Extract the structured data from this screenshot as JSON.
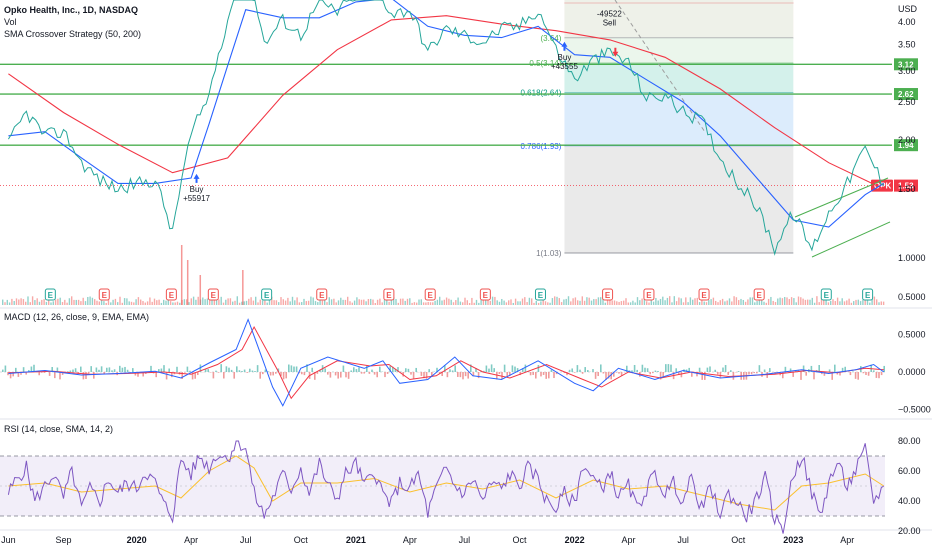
{
  "chart_data": {
    "type": "line",
    "title": "Opko Health, Inc., 1D, NASDAQ",
    "legend": [
      "Vol",
      "SMA Crossover Strategy (50, 200)"
    ],
    "currency_label": "USD",
    "x_ticks": [
      "Jun",
      "Sep",
      "2020",
      "Apr",
      "Jul",
      "Oct",
      "2021",
      "Apr",
      "Jul",
      "Oct",
      "2022",
      "Apr",
      "Jul",
      "Oct",
      "2023",
      "Apr"
    ],
    "price_axis": {
      "scale": "log",
      "ticks": [
        "4.00",
        "3.50",
        "3.00",
        "2.50",
        "2.00",
        "1.50",
        "1.0000",
        "0.5000"
      ]
    },
    "price_series": [
      [
        "2019-06-01",
        1.95
      ],
      [
        "2019-07-01",
        2.35
      ],
      [
        "2019-08-01",
        2.05
      ],
      [
        "2019-09-01",
        2.1
      ],
      [
        "2019-10-01",
        1.75
      ],
      [
        "2019-11-01",
        1.58
      ],
      [
        "2019-12-01",
        1.5
      ],
      [
        "2020-01-01",
        1.55
      ],
      [
        "2020-02-01",
        1.58
      ],
      [
        "2020-03-01",
        1.15
      ],
      [
        "2020-04-01",
        2.05
      ],
      [
        "2020-05-01",
        2.6
      ],
      [
        "2020-06-01",
        4.05
      ],
      [
        "2020-07-01",
        5.8
      ],
      [
        "2020-08-01",
        3.5
      ],
      [
        "2020-09-01",
        4.05
      ],
      [
        "2020-10-01",
        3.7
      ],
      [
        "2020-11-01",
        4.5
      ],
      [
        "2020-12-01",
        4.25
      ],
      [
        "2021-01-01",
        4.75
      ],
      [
        "2021-02-01",
        5.0
      ],
      [
        "2021-03-01",
        4.2
      ],
      [
        "2021-04-01",
        4.3
      ],
      [
        "2021-05-01",
        3.35
      ],
      [
        "2021-06-01",
        3.85
      ],
      [
        "2021-07-01",
        3.7
      ],
      [
        "2021-08-01",
        3.55
      ],
      [
        "2021-09-01",
        3.85
      ],
      [
        "2021-10-01",
        3.9
      ],
      [
        "2021-11-01",
        4.3
      ],
      [
        "2021-12-01",
        3.4
      ],
      [
        "2022-01-01",
        2.85
      ],
      [
        "2022-02-01",
        3.2
      ],
      [
        "2022-03-01",
        3.35
      ],
      [
        "2022-04-01",
        3.15
      ],
      [
        "2022-05-01",
        2.55
      ],
      [
        "2022-06-01",
        2.6
      ],
      [
        "2022-07-01",
        2.35
      ],
      [
        "2022-08-01",
        2.25
      ],
      [
        "2022-09-01",
        1.8
      ],
      [
        "2022-10-01",
        1.55
      ],
      [
        "2022-11-01",
        1.35
      ],
      [
        "2022-12-01",
        1.06
      ],
      [
        "2023-01-01",
        1.3
      ],
      [
        "2023-02-01",
        1.05
      ],
      [
        "2023-03-01",
        1.3
      ],
      [
        "2023-04-01",
        1.55
      ],
      [
        "2023-05-01",
        1.9
      ],
      [
        "2023-06-01",
        1.53
      ]
    ],
    "sma_50": [
      [
        "2019-06-01",
        2.05
      ],
      [
        "2019-08-01",
        2.1
      ],
      [
        "2019-10-01",
        1.8
      ],
      [
        "2019-12-01",
        1.55
      ],
      [
        "2020-02-01",
        1.55
      ],
      [
        "2020-04-01",
        1.6
      ],
      [
        "2020-05-01",
        2.2
      ],
      [
        "2020-06-01",
        3.1
      ],
      [
        "2020-07-01",
        4.3
      ],
      [
        "2020-09-01",
        4.1
      ],
      [
        "2020-11-01",
        4.1
      ],
      [
        "2021-01-01",
        4.5
      ],
      [
        "2021-03-01",
        4.6
      ],
      [
        "2021-05-01",
        3.9
      ],
      [
        "2021-07-01",
        3.7
      ],
      [
        "2021-09-01",
        3.65
      ],
      [
        "2021-11-01",
        3.9
      ],
      [
        "2022-01-01",
        3.3
      ],
      [
        "2022-03-01",
        3.25
      ],
      [
        "2022-05-01",
        2.85
      ],
      [
        "2022-07-01",
        2.5
      ],
      [
        "2022-09-01",
        2.05
      ],
      [
        "2022-11-01",
        1.6
      ],
      [
        "2023-01-01",
        1.25
      ],
      [
        "2023-03-01",
        1.2
      ],
      [
        "2023-05-01",
        1.45
      ],
      [
        "2023-06-01",
        1.55
      ]
    ],
    "sma_200": [
      [
        "2019-06-01",
        2.95
      ],
      [
        "2019-09-01",
        2.35
      ],
      [
        "2019-12-01",
        1.95
      ],
      [
        "2020-03-01",
        1.65
      ],
      [
        "2020-06-01",
        1.8
      ],
      [
        "2020-09-01",
        2.6
      ],
      [
        "2020-12-01",
        3.4
      ],
      [
        "2021-03-01",
        4.05
      ],
      [
        "2021-06-01",
        4.15
      ],
      [
        "2021-09-01",
        3.95
      ],
      [
        "2021-12-01",
        3.8
      ],
      [
        "2022-03-01",
        3.6
      ],
      [
        "2022-06-01",
        3.25
      ],
      [
        "2022-09-01",
        2.7
      ],
      [
        "2022-12-01",
        2.15
      ],
      [
        "2023-03-01",
        1.75
      ],
      [
        "2023-06-01",
        1.5
      ]
    ],
    "horizontal_levels": [
      {
        "value": 3.12,
        "label": "3.12",
        "color": "#4caf50"
      },
      {
        "value": 2.62,
        "label": "2.62",
        "color": "#4caf50"
      },
      {
        "value": 1.94,
        "label": "1.94",
        "color": "#4caf50"
      }
    ],
    "last_price": {
      "value": 1.53,
      "label": "1.53",
      "symbol": "OPK",
      "color": "#f23645"
    },
    "fibonacci": {
      "x_start": "2021-12-15",
      "x_end": "2023-01-01",
      "levels": [
        {
          "label": "0.5(3.14)",
          "value": 3.14,
          "fill": "#e8f5e9",
          "color": "#4caf50"
        },
        {
          "label": "0.618(2.64)",
          "value": 2.64,
          "fill": "#ccefe8",
          "color": "#089981"
        },
        {
          "label": "0.786(1.93)",
          "value": 1.93,
          "fill": "#d6e9fb",
          "color": "#2962ff"
        },
        {
          "label": "1(1.03)",
          "value": 1.03,
          "fill": "#e6e6e6",
          "color": "#787b86"
        }
      ],
      "top_label": "(3.64)"
    },
    "signals": [
      {
        "type": "buy",
        "label": "Buy",
        "qty": "+55917",
        "date": "2020-04-10",
        "price": 1.62
      },
      {
        "type": "buy",
        "label": "Buy",
        "qty": "+43555",
        "date": "2021-12-15",
        "price": 3.52
      },
      {
        "type": "sell",
        "label": "Sell",
        "qty": "-49522",
        "date": "2022-03-10",
        "price": 3.5
      }
    ],
    "earnings_markers": [
      "2019-08-10",
      "2019-11-08",
      "2020-02-28",
      "2020-05-08",
      "2020-08-05",
      "2020-11-05",
      "2021-02-25",
      "2021-05-05",
      "2021-08-05",
      "2021-11-05",
      "2022-02-25",
      "2022-05-05",
      "2022-08-05",
      "2022-11-05",
      "2023-02-25",
      "2023-05-05"
    ],
    "macd": {
      "title": "MACD (12, 26, close, 9, EMA, EMA)",
      "ticks": [
        "0.5000",
        "0.0000",
        "−0.5000"
      ],
      "macd_line": [
        [
          "2019-06-01",
          -0.02
        ],
        [
          "2019-08-01",
          0.02
        ],
        [
          "2019-10-01",
          -0.04
        ],
        [
          "2019-12-01",
          -0.02
        ],
        [
          "2020-02-01",
          0.01
        ],
        [
          "2020-03-15",
          -0.08
        ],
        [
          "2020-05-01",
          0.12
        ],
        [
          "2020-06-15",
          0.3
        ],
        [
          "2020-07-05",
          0.7
        ],
        [
          "2020-08-15",
          -0.2
        ],
        [
          "2020-09-01",
          -0.45
        ],
        [
          "2020-10-01",
          0.05
        ],
        [
          "2020-11-15",
          0.2
        ],
        [
          "2021-01-15",
          0.05
        ],
        [
          "2021-02-15",
          0.15
        ],
        [
          "2021-03-15",
          -0.15
        ],
        [
          "2021-05-01",
          -0.1
        ],
        [
          "2021-06-15",
          0.2
        ],
        [
          "2021-07-15",
          -0.05
        ],
        [
          "2021-09-01",
          -0.1
        ],
        [
          "2021-11-01",
          0.15
        ],
        [
          "2022-01-01",
          -0.15
        ],
        [
          "2022-02-01",
          -0.25
        ],
        [
          "2022-03-15",
          0.05
        ],
        [
          "2022-05-15",
          -0.1
        ],
        [
          "2022-07-01",
          0.02
        ],
        [
          "2022-09-01",
          -0.08
        ],
        [
          "2022-11-15",
          -0.03
        ],
        [
          "2023-01-15",
          0.03
        ],
        [
          "2023-03-01",
          -0.02
        ],
        [
          "2023-04-15",
          0.03
        ],
        [
          "2023-05-15",
          0.1
        ],
        [
          "2023-06-01",
          0.0
        ]
      ],
      "signal_line": [
        [
          "2019-06-01",
          -0.01
        ],
        [
          "2019-08-15",
          0.01
        ],
        [
          "2019-10-15",
          -0.03
        ],
        [
          "2019-12-15",
          -0.02
        ],
        [
          "2020-02-15",
          0.0
        ],
        [
          "2020-04-01",
          -0.03
        ],
        [
          "2020-05-15",
          0.1
        ],
        [
          "2020-06-25",
          0.3
        ],
        [
          "2020-07-15",
          0.6
        ],
        [
          "2020-08-25",
          0.0
        ],
        [
          "2020-09-15",
          -0.35
        ],
        [
          "2020-10-15",
          -0.05
        ],
        [
          "2020-12-01",
          0.15
        ],
        [
          "2021-01-25",
          0.08
        ],
        [
          "2021-02-25",
          0.1
        ],
        [
          "2021-04-01",
          -0.1
        ],
        [
          "2021-05-15",
          -0.05
        ],
        [
          "2021-06-25",
          0.15
        ],
        [
          "2021-08-01",
          0.0
        ],
        [
          "2021-09-15",
          -0.08
        ],
        [
          "2021-11-15",
          0.1
        ],
        [
          "2022-01-15",
          -0.1
        ],
        [
          "2022-02-15",
          -0.2
        ],
        [
          "2022-04-01",
          0.0
        ],
        [
          "2022-05-25",
          -0.08
        ],
        [
          "2022-07-15",
          0.0
        ],
        [
          "2022-09-15",
          -0.06
        ],
        [
          "2022-12-01",
          -0.03
        ],
        [
          "2023-01-25",
          0.02
        ],
        [
          "2023-03-15",
          -0.01
        ],
        [
          "2023-05-01",
          0.05
        ],
        [
          "2023-06-01",
          0.03
        ]
      ]
    },
    "rsi": {
      "title": "RSI (14, close, SMA, 14, 2)",
      "ticks": [
        "80.00",
        "60.00",
        "40.00",
        "20.00"
      ],
      "upper_band": 70,
      "lower_band": 30,
      "rsi_line": [
        [
          "2019-06-01",
          45
        ],
        [
          "2019-06-15",
          55
        ],
        [
          "2019-07-01",
          62
        ],
        [
          "2019-07-15",
          40
        ],
        [
          "2019-08-01",
          50
        ],
        [
          "2019-08-15",
          58
        ],
        [
          "2019-09-01",
          42
        ],
        [
          "2019-09-15",
          60
        ],
        [
          "2019-10-01",
          35
        ],
        [
          "2019-10-15",
          48
        ],
        [
          "2019-11-01",
          40
        ],
        [
          "2019-11-15",
          55
        ],
        [
          "2019-12-01",
          45
        ],
        [
          "2019-12-15",
          52
        ],
        [
          "2020-01-01",
          48
        ],
        [
          "2020-01-15",
          60
        ],
        [
          "2020-02-01",
          52
        ],
        [
          "2020-02-15",
          38
        ],
        [
          "2020-03-01",
          30
        ],
        [
          "2020-03-15",
          68
        ],
        [
          "2020-04-01",
          58
        ],
        [
          "2020-04-15",
          70
        ],
        [
          "2020-05-01",
          62
        ],
        [
          "2020-05-15",
          72
        ],
        [
          "2020-06-01",
          68
        ],
        [
          "2020-06-15",
          80
        ],
        [
          "2020-07-01",
          76
        ],
        [
          "2020-07-15",
          45
        ],
        [
          "2020-08-01",
          30
        ],
        [
          "2020-08-15",
          42
        ],
        [
          "2020-09-01",
          58
        ],
        [
          "2020-09-15",
          48
        ],
        [
          "2020-10-01",
          62
        ],
        [
          "2020-10-15",
          45
        ],
        [
          "2020-11-01",
          65
        ],
        [
          "2020-11-15",
          50
        ],
        [
          "2020-12-01",
          42
        ],
        [
          "2020-12-15",
          58
        ],
        [
          "2021-01-01",
          65
        ],
        [
          "2021-01-15",
          50
        ],
        [
          "2021-02-01",
          60
        ],
        [
          "2021-02-15",
          45
        ],
        [
          "2021-03-01",
          38
        ],
        [
          "2021-03-15",
          52
        ],
        [
          "2021-04-01",
          48
        ],
        [
          "2021-04-15",
          58
        ],
        [
          "2021-05-01",
          32
        ],
        [
          "2021-05-15",
          48
        ],
        [
          "2021-06-01",
          62
        ],
        [
          "2021-06-15",
          50
        ],
        [
          "2021-07-01",
          45
        ],
        [
          "2021-07-15",
          55
        ],
        [
          "2021-08-01",
          40
        ],
        [
          "2021-08-15",
          52
        ],
        [
          "2021-09-01",
          48
        ],
        [
          "2021-09-15",
          58
        ],
        [
          "2021-10-01",
          50
        ],
        [
          "2021-10-15",
          62
        ],
        [
          "2021-11-01",
          55
        ],
        [
          "2021-11-15",
          40
        ],
        [
          "2021-12-01",
          35
        ],
        [
          "2021-12-15",
          45
        ],
        [
          "2022-01-01",
          38
        ],
        [
          "2022-01-15",
          65
        ],
        [
          "2022-02-01",
          55
        ],
        [
          "2022-02-15",
          48
        ],
        [
          "2022-03-01",
          60
        ],
        [
          "2022-03-15",
          42
        ],
        [
          "2022-04-01",
          50
        ],
        [
          "2022-04-15",
          35
        ],
        [
          "2022-05-01",
          48
        ],
        [
          "2022-05-15",
          58
        ],
        [
          "2022-06-01",
          45
        ],
        [
          "2022-06-15",
          52
        ],
        [
          "2022-07-01",
          40
        ],
        [
          "2022-07-15",
          55
        ],
        [
          "2022-08-01",
          35
        ],
        [
          "2022-08-15",
          48
        ],
        [
          "2022-09-01",
          32
        ],
        [
          "2022-09-15",
          45
        ],
        [
          "2022-10-01",
          38
        ],
        [
          "2022-10-15",
          30
        ],
        [
          "2022-11-01",
          42
        ],
        [
          "2022-11-15",
          55
        ],
        [
          "2022-12-01",
          28
        ],
        [
          "2022-12-15",
          22
        ],
        [
          "2023-01-01",
          58
        ],
        [
          "2023-01-15",
          70
        ],
        [
          "2023-02-01",
          45
        ],
        [
          "2023-02-15",
          30
        ],
        [
          "2023-03-01",
          52
        ],
        [
          "2023-03-15",
          65
        ],
        [
          "2023-04-01",
          50
        ],
        [
          "2023-04-15",
          60
        ],
        [
          "2023-05-01",
          74
        ],
        [
          "2023-05-15",
          40
        ],
        [
          "2023-06-01",
          50
        ]
      ],
      "rsi_ma": [
        [
          "2019-06-01",
          50
        ],
        [
          "2019-08-01",
          52
        ],
        [
          "2019-10-01",
          46
        ],
        [
          "2019-12-01",
          48
        ],
        [
          "2020-02-01",
          50
        ],
        [
          "2020-03-15",
          42
        ],
        [
          "2020-05-01",
          60
        ],
        [
          "2020-06-15",
          70
        ],
        [
          "2020-07-15",
          62
        ],
        [
          "2020-08-15",
          40
        ],
        [
          "2020-10-01",
          52
        ],
        [
          "2020-12-01",
          52
        ],
        [
          "2021-02-01",
          55
        ],
        [
          "2021-04-01",
          46
        ],
        [
          "2021-06-01",
          52
        ],
        [
          "2021-08-01",
          48
        ],
        [
          "2021-10-01",
          54
        ],
        [
          "2021-12-01",
          42
        ],
        [
          "2022-02-01",
          54
        ],
        [
          "2022-04-01",
          48
        ],
        [
          "2022-06-01",
          50
        ],
        [
          "2022-08-01",
          44
        ],
        [
          "2022-10-01",
          38
        ],
        [
          "2022-12-01",
          34
        ],
        [
          "2023-01-15",
          50
        ],
        [
          "2023-03-01",
          52
        ],
        [
          "2023-05-01",
          58
        ],
        [
          "2023-06-01",
          50
        ]
      ]
    }
  }
}
